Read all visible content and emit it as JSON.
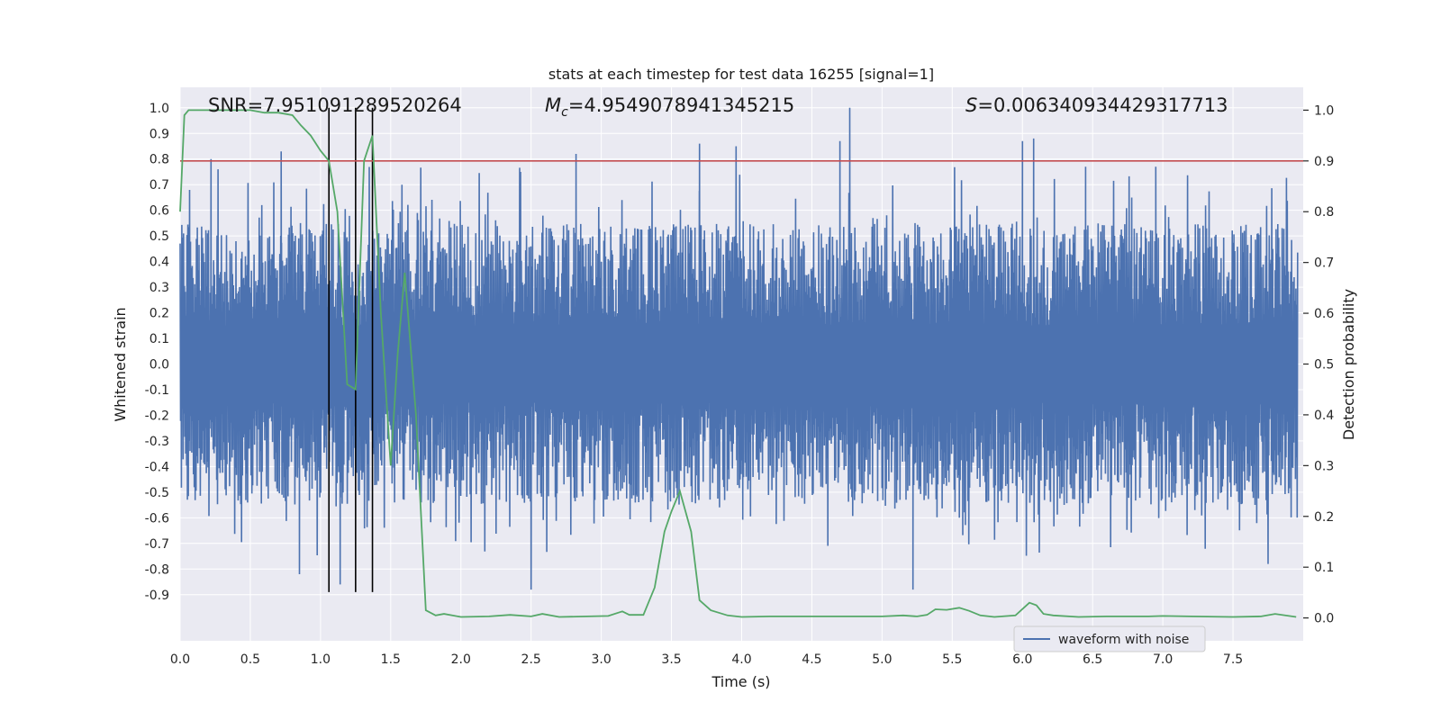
{
  "chart_data": {
    "type": "line",
    "title": "stats at each timestep for test data 16255 [signal=1]",
    "xlabel": "Time (s)",
    "ylabel": "Whitened strain",
    "y2label": "Detection probability",
    "xlim": [
      0.0,
      8.0
    ],
    "ylim": [
      -1.08,
      1.08
    ],
    "y2lim": [
      -0.045,
      1.045
    ],
    "grid": true,
    "legend": {
      "placement": "lower-right",
      "entries": [
        "waveform with noise"
      ]
    },
    "x_ticks": [
      "0.0",
      "0.5",
      "1.0",
      "1.5",
      "2.0",
      "2.5",
      "3.0",
      "3.5",
      "4.0",
      "4.5",
      "5.0",
      "5.5",
      "6.0",
      "6.5",
      "7.0",
      "7.5"
    ],
    "y_ticks": [
      "1.0",
      "0.9",
      "0.8",
      "0.7",
      "0.6",
      "0.5",
      "0.4",
      "0.3",
      "0.2",
      "0.1",
      "0.0",
      "-0.1",
      "-0.2",
      "-0.3",
      "-0.4",
      "-0.5",
      "-0.6",
      "-0.7",
      "-0.8",
      "-0.9"
    ],
    "y2_ticks": [
      "1.0",
      "0.9",
      "0.8",
      "0.7",
      "0.6",
      "0.5",
      "0.4",
      "0.3",
      "0.2",
      "0.1",
      "0.0"
    ],
    "annotations": {
      "snr": "SNR=7.951091289520264",
      "mc_symbol": "M",
      "mc_sub": "c",
      "mc_value": "=4.9549078941345215",
      "s_symbol": "S",
      "s_value": "=0.006340934429317713"
    },
    "threshold": {
      "axis": "y2",
      "value": 0.9,
      "color": "#c44e52"
    },
    "vertical_markers": {
      "x": [
        1.06,
        1.25,
        1.37
      ],
      "color": "#000000"
    },
    "waveform": {
      "name": "waveform with noise",
      "color": "#4c72b0",
      "note_spikes": [
        {
          "x": 0.22,
          "y": 0.8
        },
        {
          "x": 0.27,
          "y": 0.76
        },
        {
          "x": 0.72,
          "y": 0.83
        },
        {
          "x": 1.58,
          "y": 0.7
        },
        {
          "x": 2.82,
          "y": 0.82
        },
        {
          "x": 3.7,
          "y": 0.86
        },
        {
          "x": 3.96,
          "y": 0.85
        },
        {
          "x": 4.77,
          "y": 1.0
        },
        {
          "x": 4.7,
          "y": 0.87
        },
        {
          "x": 6.0,
          "y": 0.87
        },
        {
          "x": 6.08,
          "y": 0.88
        },
        {
          "x": 6.45,
          "y": 0.77
        },
        {
          "x": 6.95,
          "y": 0.77
        },
        {
          "x": 2.5,
          "y": -0.88
        },
        {
          "x": 5.22,
          "y": -0.88
        },
        {
          "x": 0.85,
          "y": -0.82
        },
        {
          "x": 1.14,
          "y": -0.86
        },
        {
          "x": 7.75,
          "y": -0.78
        }
      ],
      "envelope": {
        "upper": 0.6,
        "lower": -0.55
      }
    },
    "series": [
      {
        "name": "",
        "axis": "y2",
        "color": "#55a868",
        "x": [
          0.0,
          0.03,
          0.06,
          0.12,
          0.2,
          0.3,
          0.4,
          0.5,
          0.6,
          0.7,
          0.8,
          0.86,
          0.93,
          1.0,
          1.06,
          1.12,
          1.19,
          1.25,
          1.31,
          1.37,
          1.43,
          1.5,
          1.55,
          1.6,
          1.68,
          1.75,
          1.82,
          1.88,
          2.0,
          2.2,
          2.35,
          2.5,
          2.58,
          2.7,
          2.9,
          3.05,
          3.15,
          3.2,
          3.3,
          3.38,
          3.45,
          3.5,
          3.56,
          3.64,
          3.7,
          3.78,
          3.9,
          4.0,
          4.2,
          4.4,
          4.6,
          4.8,
          5.0,
          5.15,
          5.25,
          5.32,
          5.38,
          5.46,
          5.55,
          5.62,
          5.7,
          5.8,
          5.95,
          6.05,
          6.1,
          6.15,
          6.22,
          6.4,
          6.6,
          6.9,
          7.0,
          7.2,
          7.5,
          7.7,
          7.8,
          7.95
        ],
        "y": [
          0.8,
          0.99,
          1.0,
          1.0,
          1.0,
          1.0,
          1.0,
          1.0,
          0.995,
          0.995,
          0.99,
          0.97,
          0.95,
          0.92,
          0.9,
          0.8,
          0.46,
          0.45,
          0.9,
          0.95,
          0.6,
          0.3,
          0.52,
          0.68,
          0.4,
          0.015,
          0.005,
          0.008,
          0.002,
          0.003,
          0.006,
          0.003,
          0.008,
          0.002,
          0.003,
          0.004,
          0.013,
          0.006,
          0.006,
          0.06,
          0.17,
          0.21,
          0.25,
          0.17,
          0.035,
          0.015,
          0.005,
          0.002,
          0.003,
          0.003,
          0.003,
          0.003,
          0.003,
          0.005,
          0.003,
          0.006,
          0.017,
          0.016,
          0.02,
          0.014,
          0.005,
          0.002,
          0.005,
          0.03,
          0.025,
          0.008,
          0.005,
          0.002,
          0.003,
          0.003,
          0.004,
          0.003,
          0.002,
          0.003,
          0.008,
          0.002
        ]
      }
    ]
  }
}
